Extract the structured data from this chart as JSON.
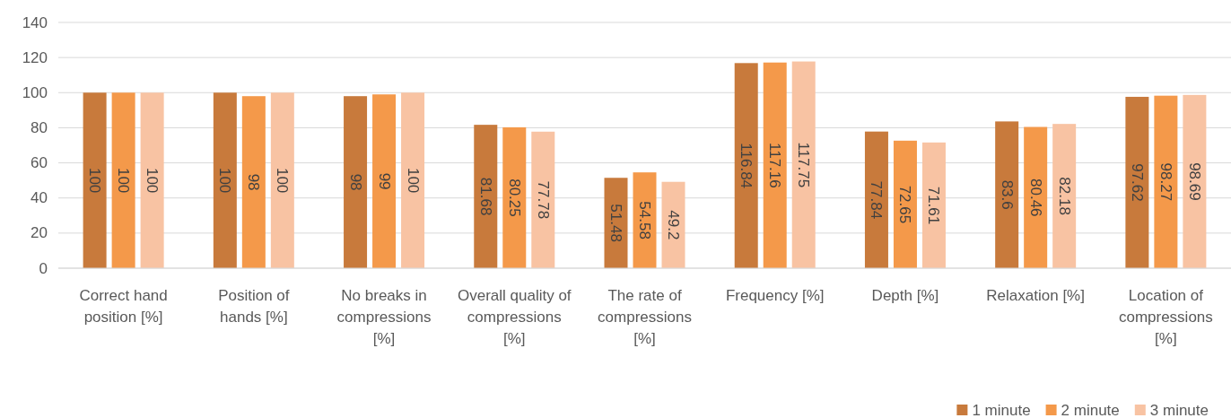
{
  "chart_data": {
    "type": "bar",
    "categories": [
      "Correct hand position [%]",
      "Position of hands [%]",
      "No breaks in compressions [%]",
      "Overall quality of compressions [%]",
      "The rate of compressions [%]",
      "Frequency [%]",
      "Depth [%]",
      "Relaxation [%]",
      "Location of compressions [%]"
    ],
    "series": [
      {
        "name": "1 minute",
        "color": "#c87a3c",
        "values": [
          100,
          100,
          98,
          81.68,
          51.48,
          116.84,
          77.84,
          83.6,
          97.62
        ]
      },
      {
        "name": "2 minute",
        "color": "#f4994a",
        "values": [
          100,
          98,
          99,
          80.25,
          54.58,
          117.16,
          72.65,
          80.46,
          98.27
        ]
      },
      {
        "name": "3 minute",
        "color": "#f8c3a3",
        "values": [
          100,
          100,
          100,
          77.78,
          49.2,
          117.75,
          71.61,
          82.18,
          98.69
        ]
      }
    ],
    "ylim": [
      0,
      140
    ],
    "yticks": [
      0,
      20,
      40,
      60,
      80,
      100,
      120,
      140
    ],
    "grid": "y",
    "legend": "bottom right",
    "data_labels": true
  }
}
